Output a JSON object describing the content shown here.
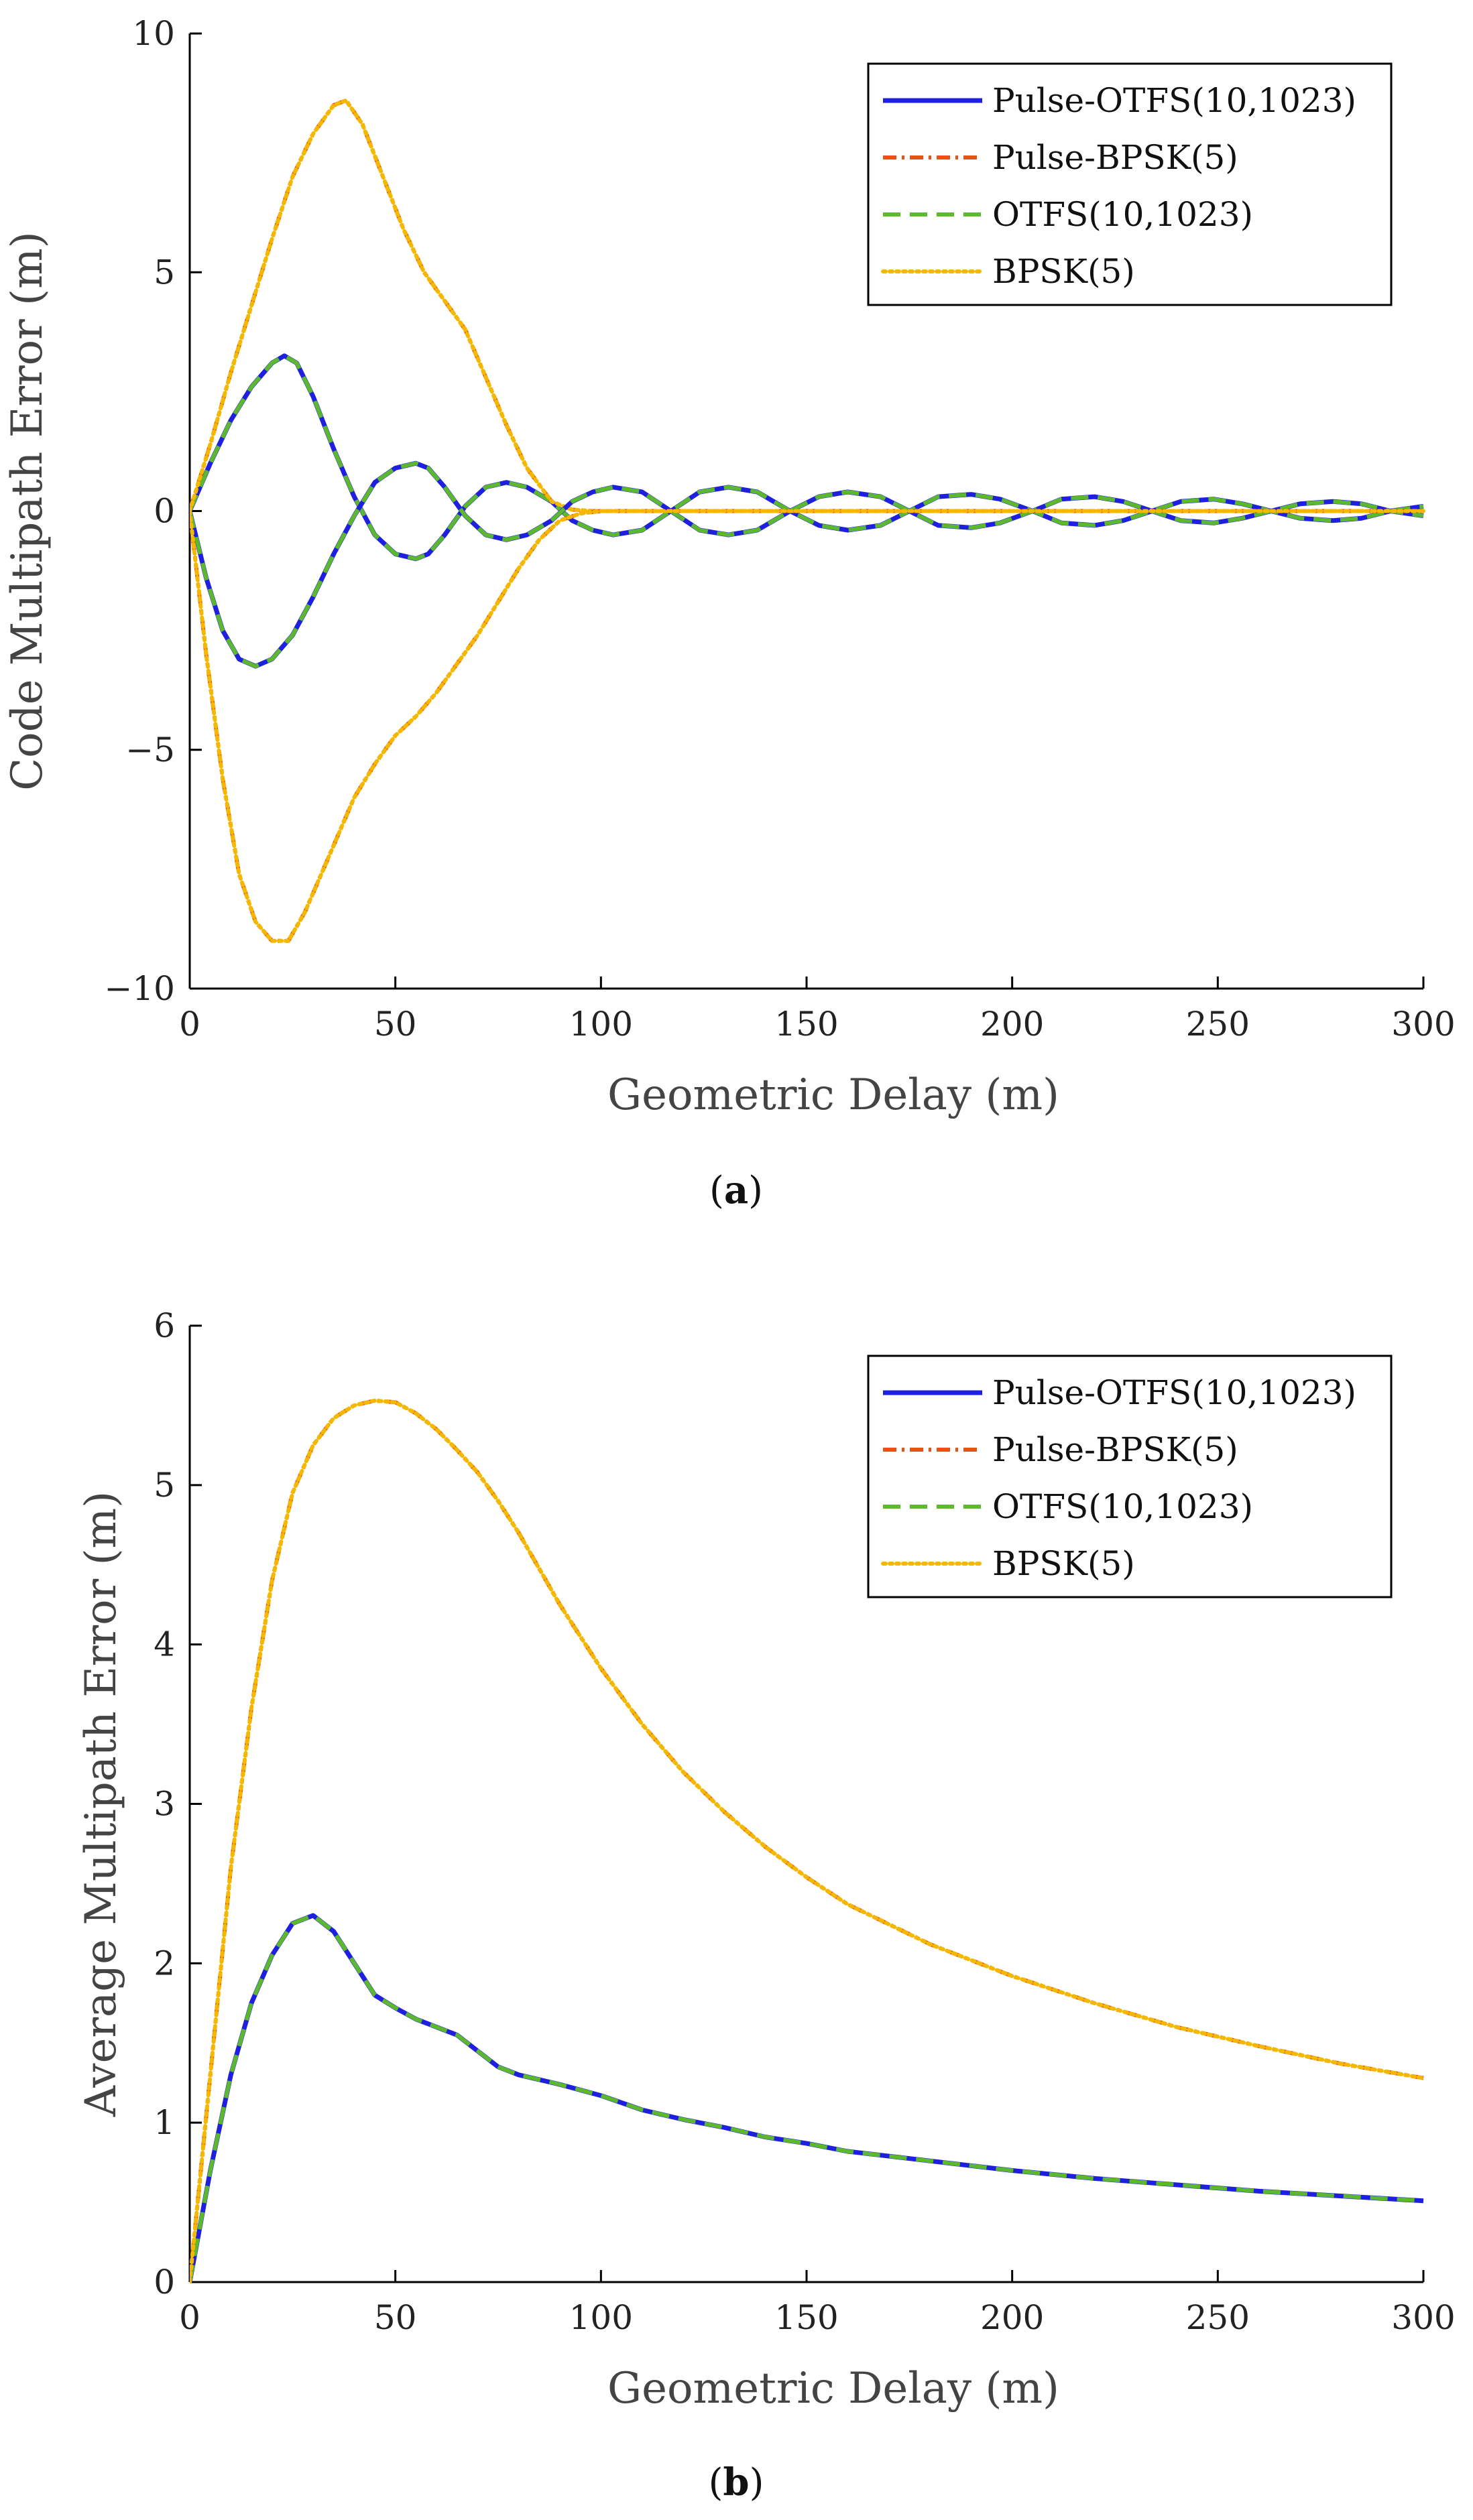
{
  "colors": {
    "pulse_otfs": "#1f1fe0",
    "pulse_bpsk": "#e8521a",
    "otfs": "#5cb82c",
    "bpsk": "#f5b800"
  },
  "chart_data": [
    {
      "type": "line",
      "caption_letter": "a",
      "xlabel": "Geometric Delay (m)",
      "ylabel": "Code Multipath Error (m)",
      "xlim": [
        0,
        300
      ],
      "ylim": [
        -10,
        10
      ],
      "xticks": [
        0,
        50,
        100,
        150,
        200,
        250,
        300
      ],
      "yticks": [
        -10,
        -5,
        0,
        5,
        10
      ],
      "ytick_labels": [
        "−10",
        "−5",
        "0",
        "5",
        "10"
      ],
      "legend_position": "top-right",
      "series": [
        {
          "name": "Pulse-OTFS(10,1023)",
          "color_key": "pulse_otfs",
          "dash": "solid",
          "x": [
            0,
            5,
            10,
            15,
            20,
            23,
            26,
            30,
            35,
            40,
            45,
            50,
            55,
            58,
            62,
            67,
            72,
            77,
            82,
            88,
            93,
            98,
            103,
            110,
            117,
            124,
            131,
            138,
            146,
            153,
            160,
            168,
            175,
            182,
            190,
            197,
            205,
            212,
            220,
            227,
            234,
            241,
            249,
            256,
            263,
            270,
            278,
            285,
            292,
            300
          ],
          "y": [
            0,
            1.0,
            1.9,
            2.6,
            3.1,
            3.25,
            3.1,
            2.4,
            1.3,
            0.3,
            -0.5,
            -0.9,
            -1.0,
            -0.9,
            -0.5,
            0.1,
            0.5,
            0.6,
            0.5,
            0.2,
            -0.2,
            -0.4,
            -0.5,
            -0.4,
            0,
            0.4,
            0.5,
            0.4,
            0,
            -0.3,
            -0.4,
            -0.3,
            0,
            0.3,
            0.35,
            0.25,
            0,
            -0.25,
            -0.3,
            -0.2,
            0,
            0.2,
            0.25,
            0.15,
            0,
            -0.15,
            -0.2,
            -0.15,
            0,
            0.1
          ]
        },
        {
          "name": "Pulse-BPSK(5)",
          "color_key": "pulse_bpsk",
          "dash": "dashdot",
          "x": [
            0,
            5,
            10,
            15,
            20,
            25,
            30,
            35,
            38,
            42,
            47,
            52,
            57,
            62,
            67,
            72,
            77,
            82,
            88,
            93,
            98,
            103,
            110,
            130,
            160,
            200,
            250,
            300
          ],
          "y": [
            0,
            1.4,
            2.9,
            4.3,
            5.7,
            7.0,
            7.9,
            8.5,
            8.6,
            8.1,
            7.0,
            5.9,
            5.0,
            4.4,
            3.8,
            2.8,
            1.8,
            0.9,
            0.2,
            0.03,
            0,
            0,
            0,
            0,
            0,
            0,
            0,
            0
          ]
        },
        {
          "name": "OTFS(10,1023)",
          "color_key": "otfs",
          "dash": "dashed",
          "x": [
            0,
            5,
            10,
            15,
            20,
            23,
            26,
            30,
            35,
            40,
            45,
            50,
            55,
            58,
            62,
            67,
            72,
            77,
            82,
            88,
            93,
            98,
            103,
            110,
            117,
            124,
            131,
            138,
            146,
            153,
            160,
            168,
            175,
            182,
            190,
            197,
            205,
            212,
            220,
            227,
            234,
            241,
            249,
            256,
            263,
            270,
            278,
            285,
            292,
            300
          ],
          "y": [
            0,
            1.0,
            1.9,
            2.6,
            3.1,
            3.25,
            3.1,
            2.4,
            1.3,
            0.3,
            -0.5,
            -0.9,
            -1.0,
            -0.9,
            -0.5,
            0.1,
            0.5,
            0.6,
            0.5,
            0.2,
            -0.2,
            -0.4,
            -0.5,
            -0.4,
            0,
            0.4,
            0.5,
            0.4,
            0,
            -0.3,
            -0.4,
            -0.3,
            0,
            0.3,
            0.35,
            0.25,
            0,
            -0.25,
            -0.3,
            -0.2,
            0,
            0.2,
            0.25,
            0.15,
            0,
            -0.15,
            -0.2,
            -0.15,
            0,
            0.1
          ]
        },
        {
          "name": "BPSK(5)",
          "color_key": "bpsk",
          "dash": "dotted",
          "x": [
            0,
            5,
            10,
            15,
            20,
            25,
            30,
            35,
            38,
            42,
            47,
            52,
            57,
            62,
            67,
            72,
            77,
            82,
            88,
            93,
            98,
            103,
            110,
            130,
            160,
            200,
            250,
            300
          ],
          "y": [
            0,
            1.4,
            2.9,
            4.3,
            5.7,
            7.0,
            7.9,
            8.5,
            8.6,
            8.1,
            7.0,
            5.9,
            5.0,
            4.4,
            3.8,
            2.8,
            1.8,
            0.9,
            0.2,
            0.03,
            0,
            0,
            0,
            0,
            0,
            0,
            0,
            0
          ]
        },
        {
          "name": "Pulse-OTFS(10,1023)",
          "legend": false,
          "color_key": "pulse_otfs",
          "dash": "solid",
          "x": [
            0,
            4,
            8,
            12,
            16,
            20,
            25,
            30,
            35,
            40,
            45,
            50,
            55,
            58,
            62,
            67,
            72,
            77,
            82,
            88,
            93,
            98,
            103,
            110,
            117,
            124,
            131,
            138,
            146,
            153,
            160,
            168,
            175,
            182,
            190,
            197,
            205,
            212,
            220,
            227,
            234,
            241,
            249,
            256,
            263,
            270,
            278,
            285,
            292,
            300
          ],
          "y": [
            0,
            -1.4,
            -2.5,
            -3.1,
            -3.25,
            -3.1,
            -2.6,
            -1.8,
            -0.9,
            -0.1,
            0.6,
            0.9,
            1.0,
            0.9,
            0.5,
            -0.1,
            -0.5,
            -0.6,
            -0.5,
            -0.2,
            0.2,
            0.4,
            0.5,
            0.4,
            0,
            -0.4,
            -0.5,
            -0.4,
            0,
            0.3,
            0.4,
            0.3,
            0,
            -0.3,
            -0.35,
            -0.25,
            0,
            0.25,
            0.3,
            0.2,
            0,
            -0.2,
            -0.25,
            -0.15,
            0,
            0.15,
            0.2,
            0.15,
            0,
            -0.1
          ]
        },
        {
          "name": "Pulse-BPSK(5)",
          "legend": false,
          "color_key": "pulse_bpsk",
          "dash": "dashdot",
          "x": [
            0,
            4,
            8,
            12,
            16,
            20,
            24,
            28,
            32,
            36,
            40,
            45,
            50,
            55,
            60,
            65,
            70,
            75,
            80,
            85,
            90,
            95,
            100,
            110,
            130,
            160,
            200,
            250,
            300
          ],
          "y": [
            0,
            -3.0,
            -5.6,
            -7.6,
            -8.6,
            -9.0,
            -9.0,
            -8.4,
            -7.6,
            -6.8,
            -6.0,
            -5.3,
            -4.7,
            -4.3,
            -3.8,
            -3.2,
            -2.6,
            -1.9,
            -1.2,
            -0.6,
            -0.2,
            -0.05,
            0,
            0,
            0,
            0,
            0,
            0,
            0
          ]
        },
        {
          "name": "OTFS(10,1023)",
          "legend": false,
          "color_key": "otfs",
          "dash": "dashed",
          "x": [
            0,
            4,
            8,
            12,
            16,
            20,
            25,
            30,
            35,
            40,
            45,
            50,
            55,
            58,
            62,
            67,
            72,
            77,
            82,
            88,
            93,
            98,
            103,
            110,
            117,
            124,
            131,
            138,
            146,
            153,
            160,
            168,
            175,
            182,
            190,
            197,
            205,
            212,
            220,
            227,
            234,
            241,
            249,
            256,
            263,
            270,
            278,
            285,
            292,
            300
          ],
          "y": [
            0,
            -1.4,
            -2.5,
            -3.1,
            -3.25,
            -3.1,
            -2.6,
            -1.8,
            -0.9,
            -0.1,
            0.6,
            0.9,
            1.0,
            0.9,
            0.5,
            -0.1,
            -0.5,
            -0.6,
            -0.5,
            -0.2,
            0.2,
            0.4,
            0.5,
            0.4,
            0,
            -0.4,
            -0.5,
            -0.4,
            0,
            0.3,
            0.4,
            0.3,
            0,
            -0.3,
            -0.35,
            -0.25,
            0,
            0.25,
            0.3,
            0.2,
            0,
            -0.2,
            -0.25,
            -0.15,
            0,
            0.15,
            0.2,
            0.15,
            0,
            -0.1
          ]
        },
        {
          "name": "BPSK(5)",
          "legend": false,
          "color_key": "bpsk",
          "dash": "dotted",
          "x": [
            0,
            4,
            8,
            12,
            16,
            20,
            24,
            28,
            32,
            36,
            40,
            45,
            50,
            55,
            60,
            65,
            70,
            75,
            80,
            85,
            90,
            95,
            100,
            110,
            130,
            160,
            200,
            250,
            300
          ],
          "y": [
            0,
            -3.0,
            -5.6,
            -7.6,
            -8.6,
            -9.0,
            -9.0,
            -8.4,
            -7.6,
            -6.8,
            -6.0,
            -5.3,
            -4.7,
            -4.3,
            -3.8,
            -3.2,
            -2.6,
            -1.9,
            -1.2,
            -0.6,
            -0.2,
            -0.05,
            0,
            0,
            0,
            0,
            0,
            0,
            0
          ]
        }
      ]
    },
    {
      "type": "line",
      "caption_letter": "b",
      "xlabel": "Geometric Delay (m)",
      "ylabel": "Average Multipath Error (m)",
      "xlim": [
        0,
        300
      ],
      "ylim": [
        0,
        6
      ],
      "xticks": [
        0,
        50,
        100,
        150,
        200,
        250,
        300
      ],
      "yticks": [
        0,
        1,
        2,
        3,
        4,
        5,
        6
      ],
      "ytick_labels": [
        "0",
        "1",
        "2",
        "3",
        "4",
        "5",
        "6"
      ],
      "legend_position": "top-right",
      "series": [
        {
          "name": "Pulse-OTFS(10,1023)",
          "color_key": "pulse_otfs",
          "dash": "solid",
          "x": [
            0,
            5,
            10,
            15,
            20,
            25,
            30,
            35,
            40,
            45,
            50,
            55,
            60,
            65,
            70,
            75,
            80,
            90,
            100,
            110,
            120,
            130,
            140,
            150,
            160,
            180,
            200,
            220,
            240,
            260,
            280,
            300
          ],
          "y": [
            0,
            0.7,
            1.3,
            1.75,
            2.05,
            2.25,
            2.3,
            2.2,
            2.0,
            1.8,
            1.72,
            1.65,
            1.6,
            1.55,
            1.45,
            1.35,
            1.3,
            1.24,
            1.17,
            1.08,
            1.02,
            0.97,
            0.91,
            0.87,
            0.82,
            0.76,
            0.7,
            0.65,
            0.61,
            0.57,
            0.54,
            0.51
          ]
        },
        {
          "name": "Pulse-BPSK(5)",
          "color_key": "pulse_bpsk",
          "dash": "dashdot",
          "x": [
            0,
            5,
            10,
            15,
            20,
            25,
            30,
            35,
            40,
            45,
            50,
            55,
            60,
            65,
            70,
            75,
            80,
            90,
            100,
            110,
            120,
            130,
            140,
            150,
            160,
            180,
            200,
            220,
            240,
            260,
            280,
            300
          ],
          "y": [
            0,
            1.3,
            2.6,
            3.6,
            4.4,
            4.95,
            5.25,
            5.42,
            5.5,
            5.53,
            5.52,
            5.45,
            5.35,
            5.22,
            5.08,
            4.9,
            4.7,
            4.25,
            3.85,
            3.5,
            3.2,
            2.95,
            2.73,
            2.54,
            2.37,
            2.12,
            1.92,
            1.75,
            1.6,
            1.48,
            1.37,
            1.28
          ]
        },
        {
          "name": "OTFS(10,1023)",
          "color_key": "otfs",
          "dash": "dashed",
          "x": [
            0,
            5,
            10,
            15,
            20,
            25,
            30,
            35,
            40,
            45,
            50,
            55,
            60,
            65,
            70,
            75,
            80,
            90,
            100,
            110,
            120,
            130,
            140,
            150,
            160,
            180,
            200,
            220,
            240,
            260,
            280,
            300
          ],
          "y": [
            0,
            0.7,
            1.3,
            1.75,
            2.05,
            2.25,
            2.3,
            2.2,
            2.0,
            1.8,
            1.72,
            1.65,
            1.6,
            1.55,
            1.45,
            1.35,
            1.3,
            1.24,
            1.17,
            1.08,
            1.02,
            0.97,
            0.91,
            0.87,
            0.82,
            0.76,
            0.7,
            0.65,
            0.61,
            0.57,
            0.54,
            0.51
          ]
        },
        {
          "name": "BPSK(5)",
          "color_key": "bpsk",
          "dash": "dotted",
          "x": [
            0,
            5,
            10,
            15,
            20,
            25,
            30,
            35,
            40,
            45,
            50,
            55,
            60,
            65,
            70,
            75,
            80,
            90,
            100,
            110,
            120,
            130,
            140,
            150,
            160,
            180,
            200,
            220,
            240,
            260,
            280,
            300
          ],
          "y": [
            0,
            1.3,
            2.6,
            3.6,
            4.4,
            4.95,
            5.25,
            5.42,
            5.5,
            5.53,
            5.52,
            5.45,
            5.35,
            5.22,
            5.08,
            4.9,
            4.7,
            4.25,
            3.85,
            3.5,
            3.2,
            2.95,
            2.73,
            2.54,
            2.37,
            2.12,
            1.92,
            1.75,
            1.6,
            1.48,
            1.37,
            1.28
          ]
        }
      ]
    }
  ]
}
